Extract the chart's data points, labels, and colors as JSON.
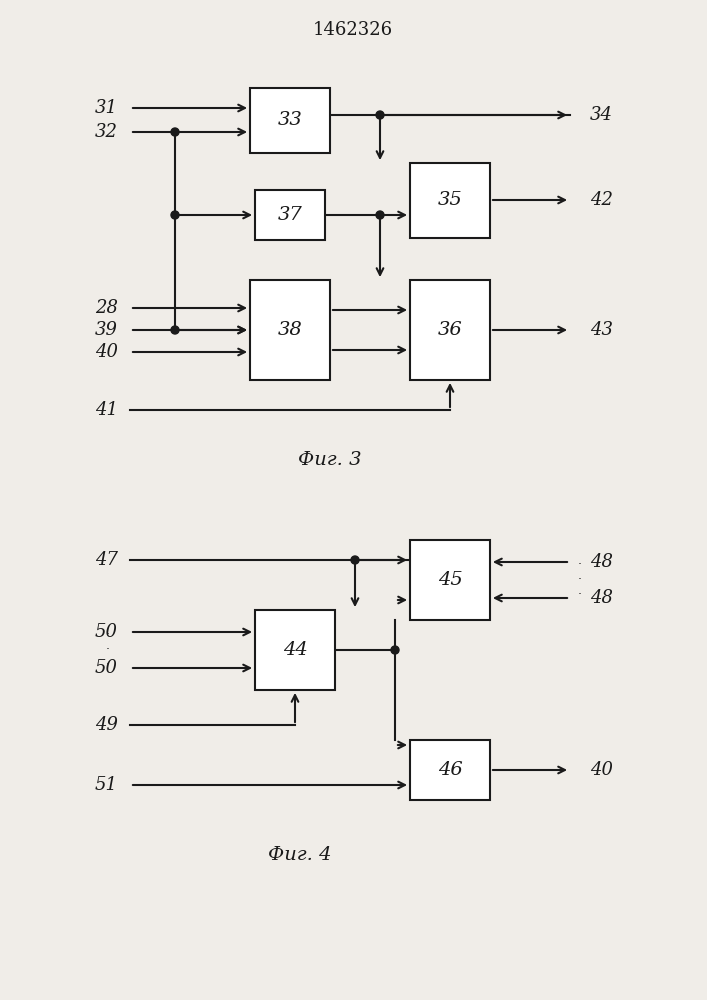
{
  "title": "1462326",
  "fig3_label": "Фиг. 3",
  "fig4_label": "Фиг. 4",
  "bg_color": "#f0ede8",
  "box_color": "#ffffff",
  "line_color": "#1a1a1a"
}
